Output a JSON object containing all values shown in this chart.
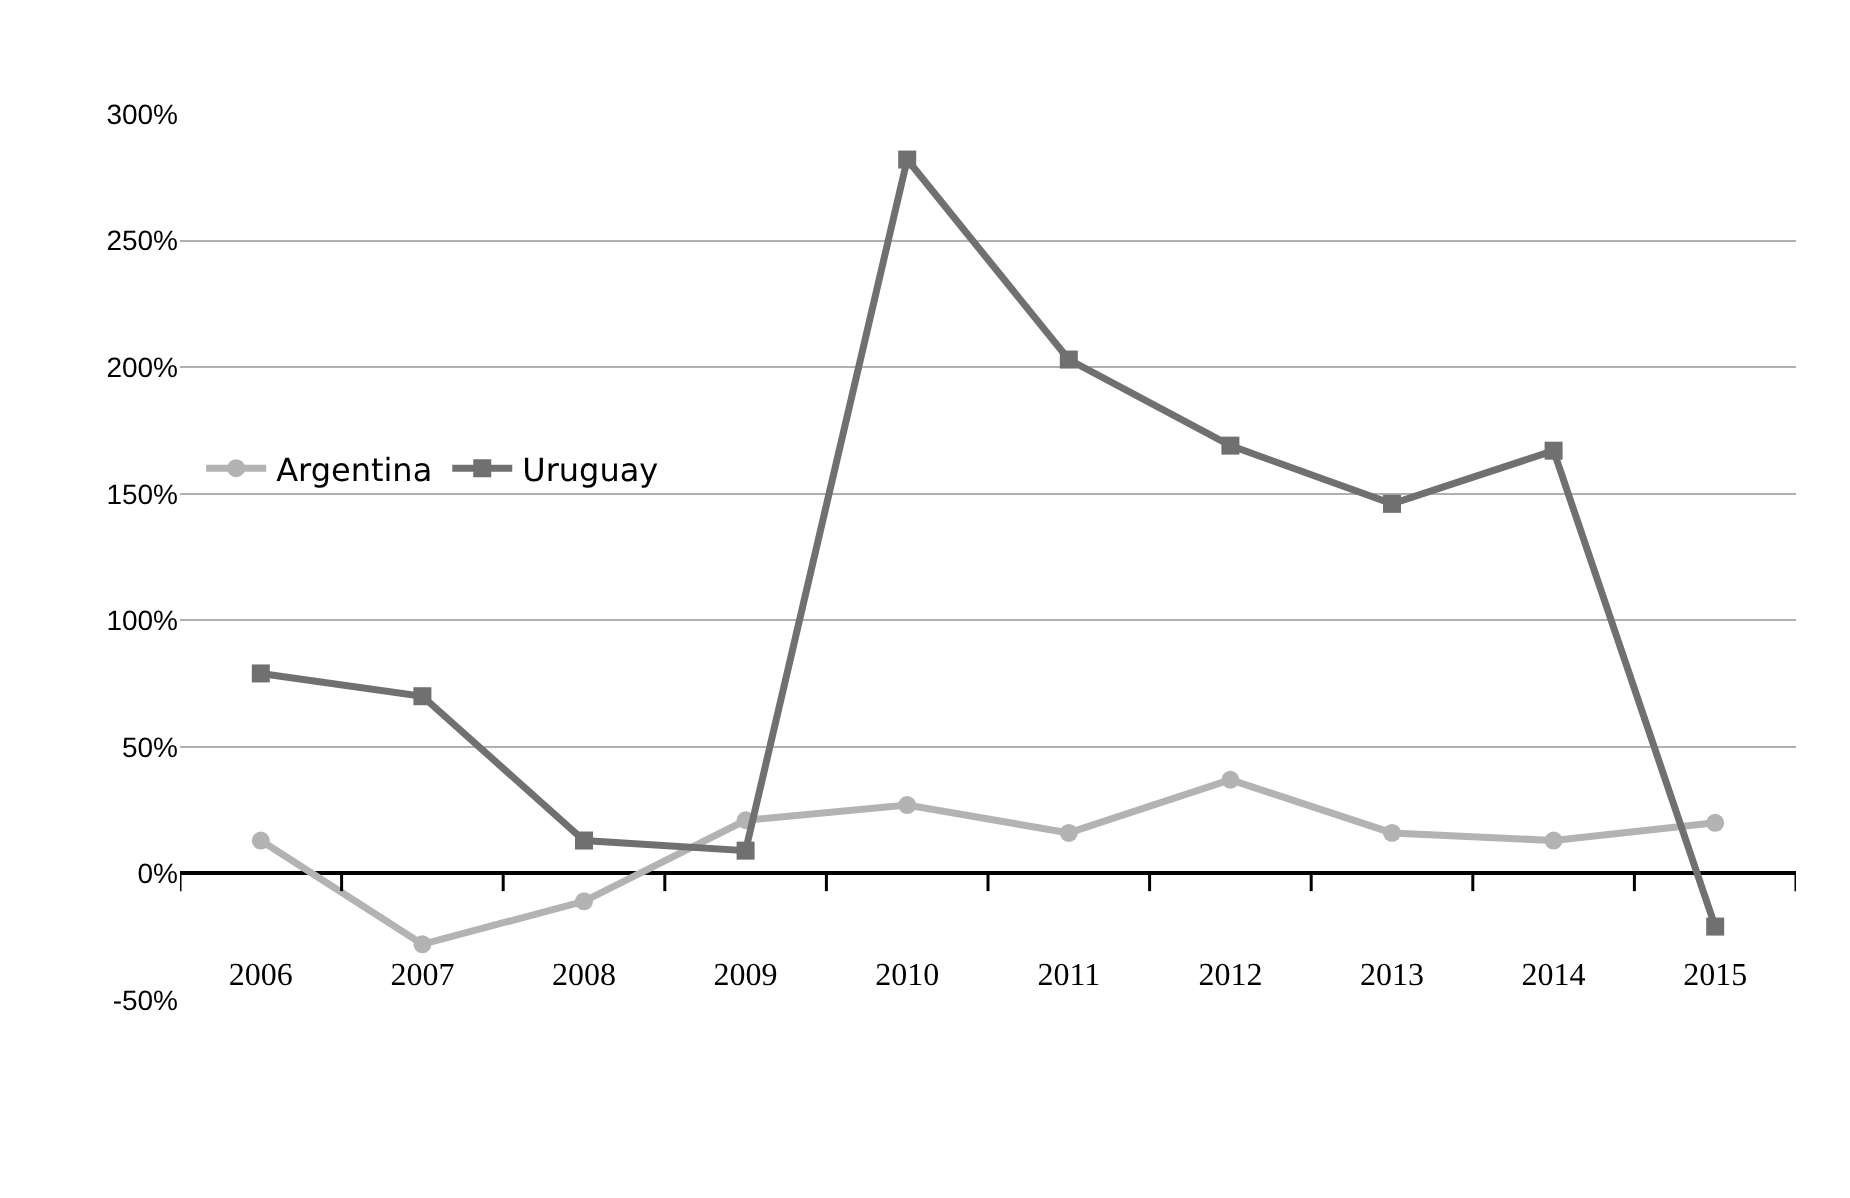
{
  "chart_data": {
    "type": "line",
    "categories": [
      "2006",
      "2007",
      "2008",
      "2009",
      "2010",
      "2011",
      "2012",
      "2013",
      "2014",
      "2015"
    ],
    "series": [
      {
        "name": "Argentina",
        "color": "#b3b3b3",
        "marker": "circle",
        "values": [
          13,
          -28,
          -11,
          21,
          27,
          16,
          37,
          16,
          13,
          20
        ]
      },
      {
        "name": "Uruguay",
        "color": "#707070",
        "marker": "square",
        "values": [
          79,
          70,
          13,
          9,
          282,
          203,
          169,
          146,
          167,
          -21
        ]
      }
    ],
    "ylim": [
      -50,
      300
    ],
    "yticks": [
      {
        "value": -50,
        "label": "-50%"
      },
      {
        "value": 0,
        "label": "0%"
      },
      {
        "value": 50,
        "label": "50%"
      },
      {
        "value": 100,
        "label": "100%"
      },
      {
        "value": 150,
        "label": "150%"
      },
      {
        "value": 200,
        "label": "200%"
      },
      {
        "value": 250,
        "label": "250%"
      },
      {
        "value": 300,
        "label": "300%"
      }
    ],
    "grid": "y",
    "legend": "left",
    "line_style": "solid"
  }
}
